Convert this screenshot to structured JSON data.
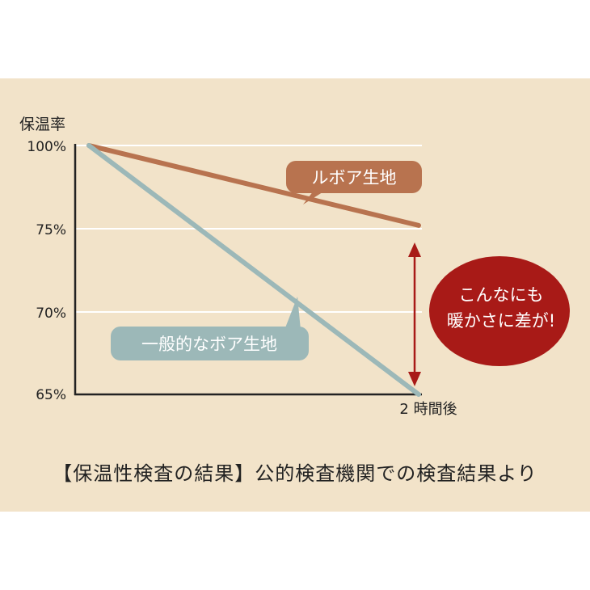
{
  "chart_data": {
    "type": "line",
    "ylabel": "保温率",
    "x": [
      "",
      "2 時間後"
    ],
    "y_ticks": [
      "100%",
      "75%",
      "70%",
      "65%"
    ],
    "series": [
      {
        "name": "ルボア生地",
        "values": [
          100,
          76
        ],
        "color": "#b8734f"
      },
      {
        "name": "一般的なボア生地",
        "values": [
          100,
          65
        ],
        "color": "#9cb8b8"
      }
    ],
    "annotation": {
      "lines": [
        "こんなにも",
        "暖かさに差が!"
      ],
      "color": "#a81a17"
    },
    "arrow_color": "#a81a17",
    "grid": true
  },
  "caption": "【保温性検査の結果】公的検査機関での検査結果より",
  "colors": {
    "background": "#f2e3c9",
    "axis": "#222222",
    "grid": "#ffffff"
  }
}
